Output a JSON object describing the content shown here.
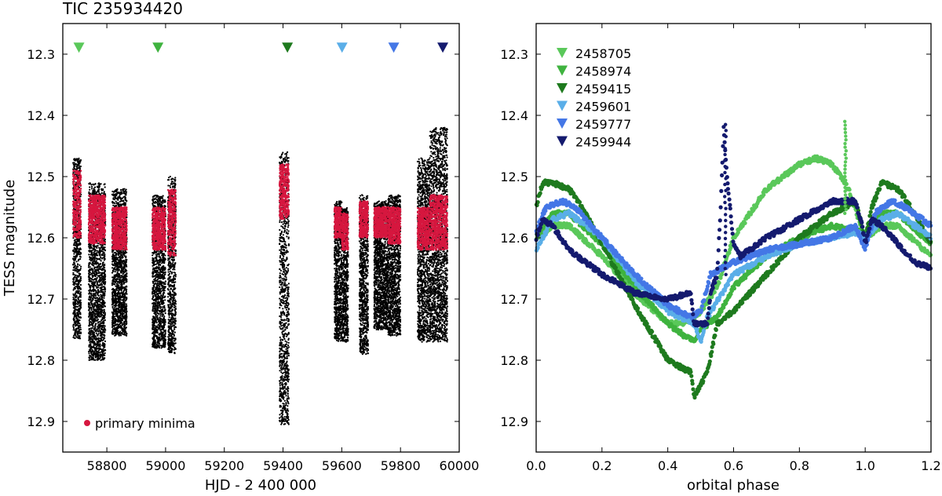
{
  "chart_data": [
    {
      "type": "scatter",
      "title": "TIC 235934420",
      "xlabel": "HJD - 2 400 000",
      "ylabel": "TESS magnitude",
      "xlim": [
        58650,
        60000
      ],
      "ylim": [
        12.25,
        12.95
      ],
      "y_inverted": true,
      "x_ticks": [
        58800,
        59000,
        59200,
        59400,
        59600,
        59800,
        60000
      ],
      "y_ticks": [
        12.3,
        12.4,
        12.5,
        12.6,
        12.7,
        12.8,
        12.9
      ],
      "grid": false,
      "legend": {
        "placement": "lower-left",
        "entries": [
          {
            "label": "primary minima",
            "color": "#d6173f"
          }
        ]
      },
      "colors": {
        "all_data": "#000000",
        "primary_minima": "#d6173f"
      },
      "segments": [
        {
          "x_start": 58685,
          "x_end": 58712,
          "y_min": 12.765,
          "y_max": 12.47,
          "red_top": 12.49,
          "red_bottom": 12.6
        },
        {
          "x_start": 58738,
          "x_end": 58795,
          "y_min": 12.8,
          "y_max": 12.51,
          "red_top": 12.53,
          "red_bottom": 12.61
        },
        {
          "x_start": 58818,
          "x_end": 58868,
          "y_min": 12.76,
          "y_max": 12.52,
          "red_top": 12.55,
          "red_bottom": 12.62
        },
        {
          "x_start": 58955,
          "x_end": 59000,
          "y_min": 12.78,
          "y_max": 12.53,
          "red_top": 12.55,
          "red_bottom": 12.62
        },
        {
          "x_start": 59008,
          "x_end": 59035,
          "y_min": 12.79,
          "y_max": 12.5,
          "red_top": 12.52,
          "red_bottom": 12.63
        },
        {
          "x_start": 59388,
          "x_end": 59420,
          "y_min": 12.905,
          "y_max": 12.46,
          "red_top": 12.48,
          "red_bottom": 12.57
        },
        {
          "x_start": 59575,
          "x_end": 59600,
          "y_min": 12.77,
          "y_max": 12.54,
          "red_top": 12.55,
          "red_bottom": 12.6
        },
        {
          "x_start": 59600,
          "x_end": 59622,
          "y_min": 12.77,
          "y_max": 12.55,
          "red_top": 12.56,
          "red_bottom": 12.62
        },
        {
          "x_start": 59660,
          "x_end": 59690,
          "y_min": 12.79,
          "y_max": 12.53,
          "red_top": 12.54,
          "red_bottom": 12.6
        },
        {
          "x_start": 59710,
          "x_end": 59758,
          "y_min": 12.75,
          "y_max": 12.54,
          "red_top": 12.55,
          "red_bottom": 12.6
        },
        {
          "x_start": 59758,
          "x_end": 59800,
          "y_min": 12.76,
          "y_max": 12.53,
          "red_top": 12.55,
          "red_bottom": 12.61
        },
        {
          "x_start": 59858,
          "x_end": 59900,
          "y_min": 12.77,
          "y_max": 12.47,
          "red_top": 12.55,
          "red_bottom": 12.62
        },
        {
          "x_start": 59900,
          "x_end": 59960,
          "y_min": 12.77,
          "y_max": 12.42,
          "red_top": 12.53,
          "red_bottom": 12.62
        }
      ],
      "epoch_markers": [
        {
          "x": 58705,
          "y": 12.29,
          "color": "#5ac85a"
        },
        {
          "x": 58974,
          "y": 12.29,
          "color": "#3fb33f"
        },
        {
          "x": 59415,
          "y": 12.29,
          "color": "#1e7a1e"
        },
        {
          "x": 59601,
          "y": 12.29,
          "color": "#5aaee8"
        },
        {
          "x": 59777,
          "y": 12.29,
          "color": "#4477e6"
        },
        {
          "x": 59944,
          "y": 12.29,
          "color": "#141a6e"
        }
      ]
    },
    {
      "type": "scatter",
      "title": "",
      "xlabel": "orbital phase",
      "ylabel": "",
      "xlim": [
        0.0,
        1.2
      ],
      "ylim": [
        12.25,
        12.95
      ],
      "y_inverted": true,
      "x_ticks": [
        0.0,
        0.2,
        0.4,
        0.6,
        0.8,
        1.0,
        1.2
      ],
      "x_tick_labels": [
        "0.0",
        "0.2",
        "0.4",
        "0.6",
        "0.8",
        "1.0",
        "1.2"
      ],
      "y_ticks": [
        12.3,
        12.4,
        12.5,
        12.6,
        12.7,
        12.8,
        12.9
      ],
      "grid": false,
      "legend": {
        "placement": "top-left"
      },
      "series": [
        {
          "name": "2458705",
          "color": "#5ac85a",
          "x": [
            0.0,
            0.05,
            0.1,
            0.2,
            0.3,
            0.4,
            0.45,
            0.5,
            0.55,
            0.6,
            0.7,
            0.8,
            0.85,
            0.9,
            0.95,
            0.98,
            1.0,
            1.05,
            1.1,
            1.2
          ],
          "y": [
            12.6,
            12.58,
            12.58,
            12.63,
            12.69,
            12.74,
            12.74,
            12.72,
            12.68,
            12.6,
            12.52,
            12.48,
            12.47,
            12.48,
            12.52,
            12.57,
            12.6,
            12.58,
            12.58,
            12.63
          ]
        },
        {
          "name": "2458974",
          "color": "#3fb33f",
          "x": [
            0.0,
            0.05,
            0.1,
            0.2,
            0.3,
            0.4,
            0.45,
            0.48,
            0.5,
            0.55,
            0.6,
            0.7,
            0.8,
            0.9,
            0.98,
            1.0,
            1.05,
            1.1,
            1.2
          ],
          "y": [
            12.6,
            12.56,
            12.56,
            12.61,
            12.68,
            12.74,
            12.76,
            12.77,
            12.75,
            12.73,
            12.68,
            12.63,
            12.6,
            12.58,
            12.59,
            12.6,
            12.56,
            12.56,
            12.61
          ]
        },
        {
          "name": "2459415",
          "color": "#1e7a1e",
          "x": [
            0.0,
            0.02,
            0.05,
            0.1,
            0.15,
            0.2,
            0.3,
            0.4,
            0.47,
            0.48,
            0.52,
            0.55,
            0.6,
            0.7,
            0.8,
            0.9,
            0.97,
            1.0,
            1.02,
            1.05,
            1.1,
            1.15,
            1.2
          ],
          "y": [
            12.55,
            12.51,
            12.51,
            12.52,
            12.56,
            12.61,
            12.71,
            12.8,
            12.82,
            12.86,
            12.82,
            12.74,
            12.72,
            12.66,
            12.6,
            12.56,
            12.54,
            12.6,
            12.55,
            12.51,
            12.52,
            12.56,
            12.61
          ]
        },
        {
          "name": "2459601",
          "color": "#5aaee8",
          "x": [
            0.0,
            0.05,
            0.1,
            0.2,
            0.3,
            0.4,
            0.48,
            0.5,
            0.52,
            0.6,
            0.7,
            0.8,
            0.9,
            0.98,
            1.0,
            1.05,
            1.1,
            1.2
          ],
          "y": [
            12.62,
            12.57,
            12.56,
            12.6,
            12.67,
            12.72,
            12.74,
            12.77,
            12.73,
            12.66,
            12.63,
            12.61,
            12.6,
            12.59,
            12.6,
            12.57,
            12.56,
            12.6
          ]
        },
        {
          "name": "2459777",
          "color": "#4477e6",
          "x": [
            0.0,
            0.03,
            0.08,
            0.12,
            0.2,
            0.3,
            0.4,
            0.47,
            0.5,
            0.53,
            0.6,
            0.7,
            0.8,
            0.9,
            0.97,
            1.0,
            1.03,
            1.08,
            1.12,
            1.2
          ],
          "y": [
            12.59,
            12.55,
            12.54,
            12.55,
            12.6,
            12.66,
            12.71,
            12.73,
            12.72,
            12.66,
            12.64,
            12.62,
            12.61,
            12.6,
            12.58,
            12.62,
            12.56,
            12.54,
            12.55,
            12.58
          ]
        },
        {
          "name": "2459944",
          "color": "#141a6e",
          "x": [
            0.0,
            0.02,
            0.05,
            0.1,
            0.2,
            0.3,
            0.4,
            0.47,
            0.48,
            0.52,
            0.53,
            0.55,
            0.56,
            0.57,
            0.58,
            0.6,
            0.62,
            0.65,
            0.7,
            0.8,
            0.9,
            0.97,
            0.99,
            1.0,
            1.02,
            1.05,
            1.1,
            1.15,
            1.2
          ],
          "y": [
            12.6,
            12.57,
            12.58,
            12.62,
            12.66,
            12.69,
            12.7,
            12.69,
            12.74,
            12.74,
            12.69,
            12.66,
            12.56,
            12.42,
            12.5,
            12.61,
            12.63,
            12.62,
            12.6,
            12.57,
            12.54,
            12.54,
            12.58,
            12.61,
            12.57,
            12.58,
            12.61,
            12.64,
            12.65
          ]
        }
      ],
      "spikes": [
        {
          "series": "2458705",
          "x": 0.94,
          "y_top": 12.41,
          "y_bottom": 12.56
        },
        {
          "series": "2459944",
          "x": 0.575,
          "y_top": 12.415,
          "y_bottom": 12.66
        }
      ]
    }
  ]
}
